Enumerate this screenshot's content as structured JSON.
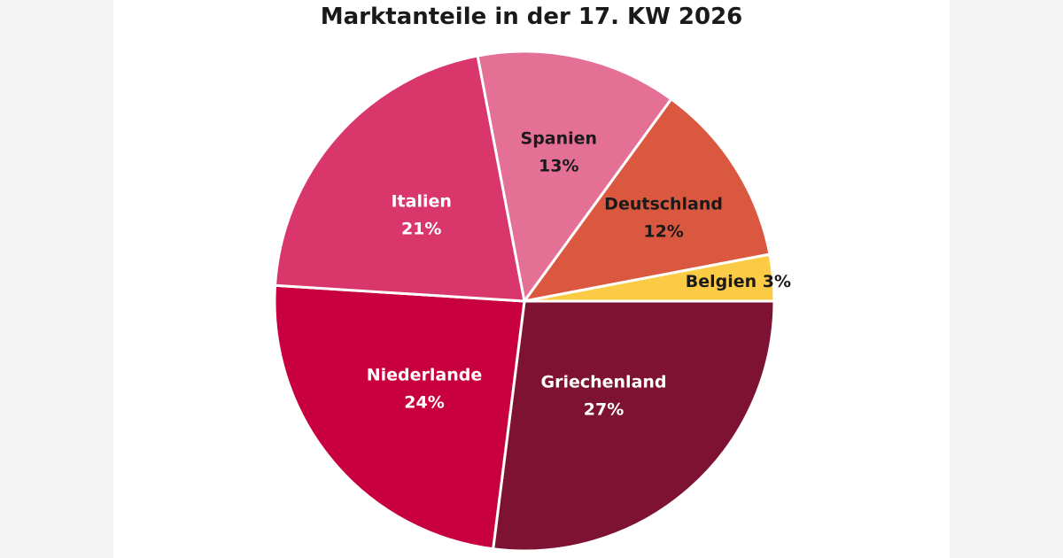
{
  "chart_data": {
    "type": "pie",
    "title": "Marktanteile in der 17. KW 2026",
    "slices": [
      {
        "label": "Griechenland",
        "value": 27,
        "value_text": "27%",
        "color": "#7d1232",
        "text_color": "#ffffff"
      },
      {
        "label": "Niederlande",
        "value": 24,
        "value_text": "24%",
        "color": "#c9003f",
        "text_color": "#ffffff"
      },
      {
        "label": "Italien",
        "value": 21,
        "value_text": "21%",
        "color": "#d9376b",
        "text_color": "#ffffff"
      },
      {
        "label": "Spanien",
        "value": 13,
        "value_text": "13%",
        "color": "#e57095",
        "text_color": "#1a1a1a"
      },
      {
        "label": "Deutschland",
        "value": 12,
        "value_text": "12%",
        "color": "#db5840",
        "text_color": "#1a1a1a"
      },
      {
        "label": "Belgien",
        "value": 3,
        "value_text": "3%",
        "color": "#fccb46",
        "text_color": "#1a1a1a"
      }
    ]
  }
}
